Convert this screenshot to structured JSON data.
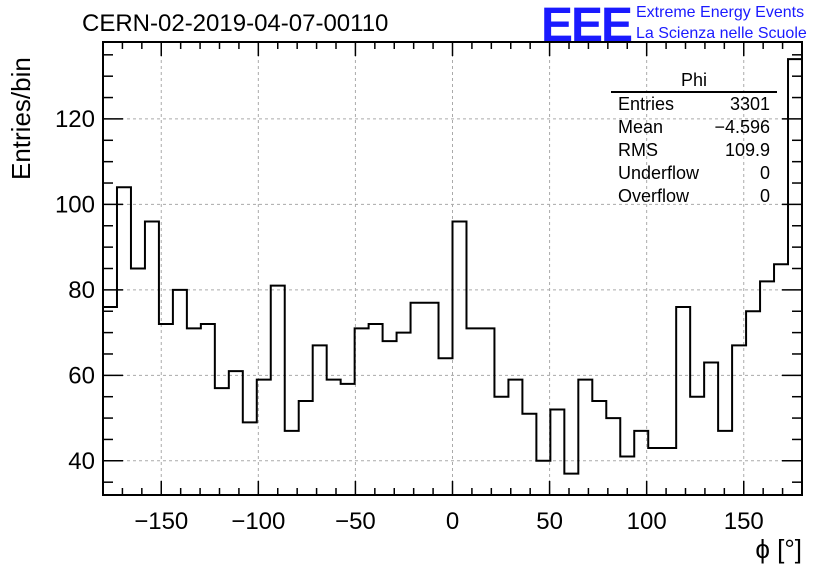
{
  "title": "CERN-02-2019-04-07-00110",
  "logo": {
    "mark": "EEE",
    "line1": "Extreme Energy Events",
    "line2": "La Scienza nelle Scuole",
    "color": "#1a1aff"
  },
  "stats": {
    "title": "Phi",
    "rows": [
      {
        "label": "Entries",
        "value": "3301"
      },
      {
        "label": "Mean",
        "value": "−4.596"
      },
      {
        "label": "RMS",
        "value": "109.9"
      },
      {
        "label": "Underflow",
        "value": "0"
      },
      {
        "label": "Overflow",
        "value": "0"
      }
    ]
  },
  "chart_data": {
    "type": "histogram",
    "xlabel": "ϕ [°]",
    "ylabel": "Entries/bin",
    "xlim": [
      -180,
      180
    ],
    "ylim": [
      32,
      138
    ],
    "grid": true,
    "bin_width": 7.2,
    "xticks": [
      -150,
      -100,
      -50,
      0,
      50,
      100,
      150
    ],
    "xtick_labels": [
      "−150",
      "−100",
      "−50",
      "0",
      "50",
      "100",
      "150"
    ],
    "yticks": [
      40,
      60,
      80,
      100,
      120
    ],
    "ytick_labels": [
      "40",
      "60",
      "80",
      "100",
      "120"
    ],
    "values": [
      76,
      104,
      85,
      96,
      72,
      80,
      71,
      72,
      57,
      61,
      49,
      59,
      81,
      47,
      54,
      67,
      59,
      58,
      71,
      72,
      68,
      70,
      77,
      77,
      64,
      96,
      71,
      71,
      55,
      59,
      51,
      40,
      52,
      37,
      59,
      54,
      50,
      41,
      47,
      43,
      43,
      76,
      55,
      63,
      47,
      67,
      75,
      82,
      86,
      134
    ]
  }
}
